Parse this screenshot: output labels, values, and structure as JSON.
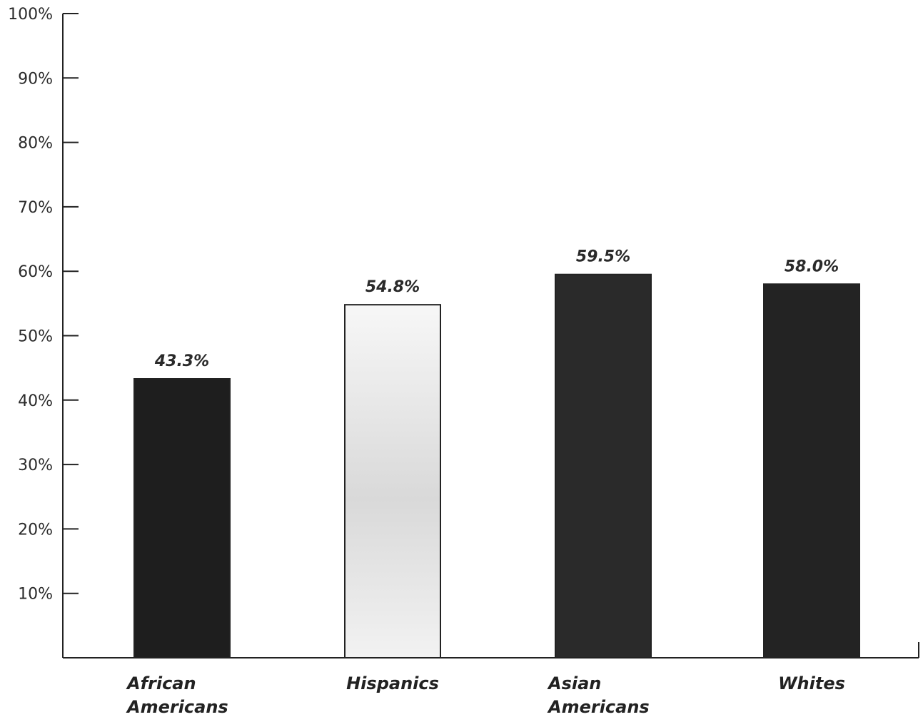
{
  "chart_data": {
    "type": "bar",
    "categories": [
      [
        "African",
        "Americans"
      ],
      [
        "Hispanics"
      ],
      [
        "Asian",
        "Americans"
      ],
      [
        "Whites"
      ]
    ],
    "values": [
      43.3,
      54.8,
      59.5,
      58.0
    ],
    "data_labels": [
      "43.3%",
      "54.8%",
      "59.5%",
      "58.0%"
    ],
    "bar_colors": [
      "#1e1e1e",
      "#f1f1f1",
      "#2a2a2a",
      "#232323"
    ],
    "ylim": [
      0,
      100
    ],
    "yticks": [
      10,
      20,
      30,
      40,
      50,
      60,
      70,
      80,
      90,
      100
    ],
    "ytick_labels": [
      "10%",
      "20%",
      "30%",
      "40%",
      "50%",
      "60%",
      "70%",
      "80%",
      "90%",
      "100%"
    ],
    "grid": false,
    "title": "",
    "xlabel": "",
    "ylabel": ""
  }
}
